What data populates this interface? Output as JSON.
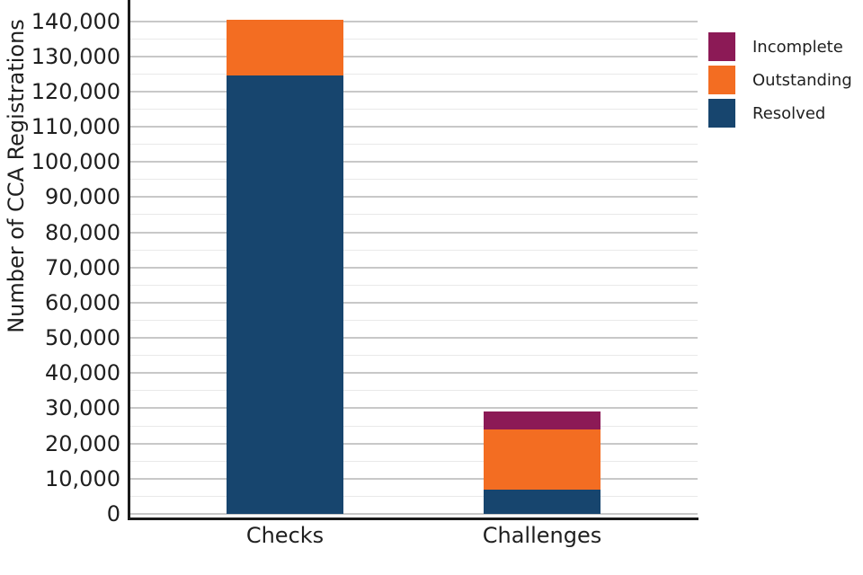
{
  "chart_data": {
    "type": "bar",
    "stacked": true,
    "title": "",
    "xlabel": "",
    "ylabel": "Number of CCA Registrations",
    "categories": [
      "Checks",
      "Challenges"
    ],
    "series": [
      {
        "name": "Resolved",
        "color": "#17456e",
        "values": [
          124500,
          7000
        ]
      },
      {
        "name": "Outstanding",
        "color": "#f36d22",
        "values": [
          16000,
          17000
        ]
      },
      {
        "name": "Incomplete",
        "color": "#8c1a56",
        "values": [
          0,
          5000
        ]
      }
    ],
    "ylim": [
      0,
      146000
    ],
    "ytick_step": 10000,
    "minor_gridline_step": 5000,
    "grid": true,
    "legend_position": "upper-right",
    "yticks": [
      {
        "value": 0,
        "label": "0"
      },
      {
        "value": 10000,
        "label": "10,000"
      },
      {
        "value": 20000,
        "label": "20,000"
      },
      {
        "value": 30000,
        "label": "30,000"
      },
      {
        "value": 40000,
        "label": "40,000"
      },
      {
        "value": 50000,
        "label": "50,000"
      },
      {
        "value": 60000,
        "label": "60,000"
      },
      {
        "value": 70000,
        "label": "70,000"
      },
      {
        "value": 80000,
        "label": "80,000"
      },
      {
        "value": 90000,
        "label": "90,000"
      },
      {
        "value": 100000,
        "label": "100,000"
      },
      {
        "value": 110000,
        "label": "110,000"
      },
      {
        "value": 120000,
        "label": "120,000"
      },
      {
        "value": 130000,
        "label": "130,000"
      },
      {
        "value": 140000,
        "label": "140,000"
      }
    ],
    "legend_entries": [
      {
        "label": "Incomplete",
        "color": "#8c1a56"
      },
      {
        "label": "Outstanding",
        "color": "#f36d22"
      },
      {
        "label": "Resolved",
        "color": "#17456e"
      }
    ]
  },
  "colors": {
    "resolved": "#17456e",
    "outstanding": "#f36d22",
    "incomplete": "#8c1a56",
    "grid_major": "#c8c8c8",
    "grid_minor": "#e9e9e9",
    "axis": "#1a1a1a",
    "text": "#1f1f1f",
    "background": "#ffffff"
  }
}
